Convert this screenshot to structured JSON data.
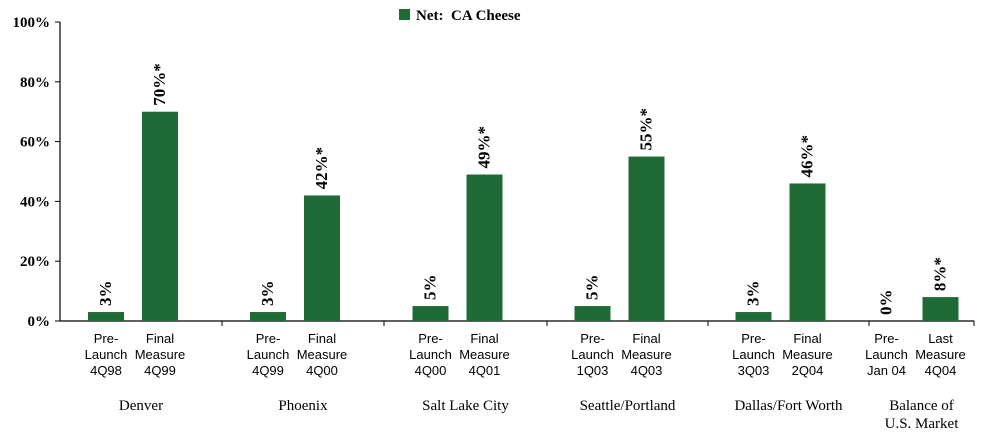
{
  "chart_data": {
    "type": "bar",
    "legend": {
      "label": "Net:  CA Cheese",
      "placement": "top-center"
    },
    "ylim": [
      0,
      100
    ],
    "y_ticks": [
      "0%",
      "20%",
      "40%",
      "60%",
      "80%",
      "100%"
    ],
    "y_tick_values": [
      0,
      20,
      40,
      60,
      80,
      100
    ],
    "color": "#1f6b35",
    "groups": [
      {
        "name": "Denver",
        "bars": [
          {
            "label_lines": [
              "Pre-",
              "Launch",
              "4Q98"
            ],
            "value": 3,
            "value_label": "3%"
          },
          {
            "label_lines": [
              "Final",
              "Measure",
              "4Q99"
            ],
            "value": 70,
            "value_label": "70%*"
          }
        ]
      },
      {
        "name": "Phoenix",
        "bars": [
          {
            "label_lines": [
              "Pre-",
              "Launch",
              "4Q99"
            ],
            "value": 3,
            "value_label": "3%"
          },
          {
            "label_lines": [
              "Final",
              "Measure",
              "4Q00"
            ],
            "value": 42,
            "value_label": "42%*"
          }
        ]
      },
      {
        "name": "Salt Lake City",
        "bars": [
          {
            "label_lines": [
              "Pre-",
              "Launch",
              "4Q00"
            ],
            "value": 5,
            "value_label": "5%"
          },
          {
            "label_lines": [
              "Final",
              "Measure",
              "4Q01"
            ],
            "value": 49,
            "value_label": "49%*"
          }
        ]
      },
      {
        "name": "Seattle/Portland",
        "bars": [
          {
            "label_lines": [
              "Pre-",
              "Launch",
              "1Q03"
            ],
            "value": 5,
            "value_label": "5%"
          },
          {
            "label_lines": [
              "Final",
              "Measure",
              "4Q03"
            ],
            "value": 55,
            "value_label": "55%*"
          }
        ]
      },
      {
        "name": "Dallas/Fort Worth",
        "bars": [
          {
            "label_lines": [
              "Pre-",
              "Launch",
              "3Q03"
            ],
            "value": 3,
            "value_label": "3%"
          },
          {
            "label_lines": [
              "Final",
              "Measure",
              "2Q04"
            ],
            "value": 46,
            "value_label": "46%*"
          }
        ]
      },
      {
        "name": "Balance of U.S. Market",
        "name_lines": [
          "Balance of",
          "U.S. Market"
        ],
        "bars": [
          {
            "label_lines": [
              "Pre-",
              "Launch",
              "Jan 04"
            ],
            "value": 0,
            "value_label": "0%"
          },
          {
            "label_lines": [
              "Last",
              "Measure",
              "4Q04"
            ],
            "value": 8,
            "value_label": "8%*"
          }
        ]
      }
    ]
  }
}
